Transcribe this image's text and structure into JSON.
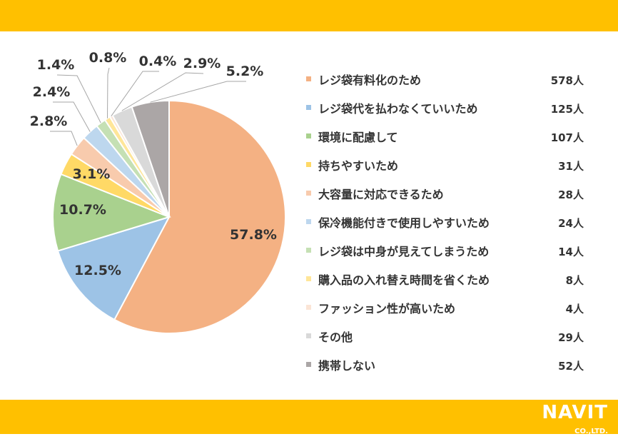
{
  "theme": {
    "band_color": "#FFC000",
    "label_color": "#333333",
    "leader_color": "#A6A6A6"
  },
  "logo": {
    "brand": "NAVIT",
    "suffix": "CO.,LTD.",
    "url": "www.navit-j.com"
  },
  "chart_data": {
    "type": "pie",
    "title": "",
    "slices": [
      {
        "name": "レジ袋有料化のため",
        "count": "578人",
        "value": 57.8,
        "label": "57.8%",
        "color": "#F4B183"
      },
      {
        "name": "レジ袋代を払わなくていいため",
        "count": "125人",
        "value": 12.5,
        "label": "12.5%",
        "color": "#9DC3E6"
      },
      {
        "name": "環境に配慮して",
        "count": "107人",
        "value": 10.7,
        "label": "10.7%",
        "color": "#A9D18E"
      },
      {
        "name": "持ちやすいため",
        "count": "31人",
        "value": 3.1,
        "label": "3.1%",
        "color": "#FFD966"
      },
      {
        "name": "大容量に対応できるため",
        "count": "28人",
        "value": 2.8,
        "label": "2.8%",
        "color": "#F8CBAD"
      },
      {
        "name": "保冷機能付きで使用しやすいため",
        "count": "24人",
        "value": 2.4,
        "label": "2.4%",
        "color": "#BDD7EE"
      },
      {
        "name": "レジ袋は中身が見えてしまうため",
        "count": "14人",
        "value": 1.4,
        "label": "1.4%",
        "color": "#C5E0B4"
      },
      {
        "name": "購入品の入れ替え時間を省くため",
        "count": "8人",
        "value": 0.8,
        "label": "0.8%",
        "color": "#FFE699"
      },
      {
        "name": "ファッション性が高いため",
        "count": "4人",
        "value": 0.4,
        "label": "0.4%",
        "color": "#FBE5D6"
      },
      {
        "name": "その他",
        "count": "29人",
        "value": 2.9,
        "label": "2.9%",
        "color": "#D9D9D9"
      },
      {
        "name": "携帯しない",
        "count": "52人",
        "value": 5.2,
        "label": "5.2%",
        "color": "#ABA6A6"
      }
    ],
    "legend_position": "right"
  }
}
